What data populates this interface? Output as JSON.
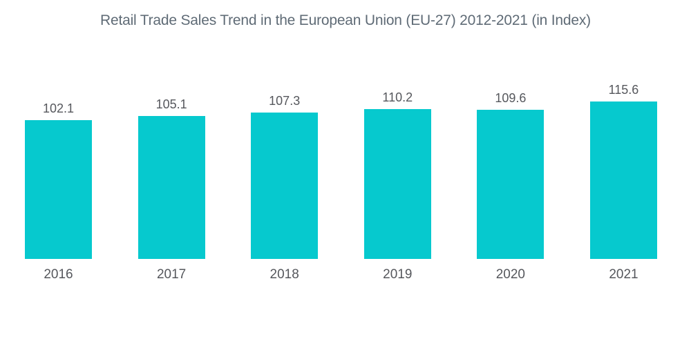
{
  "chart_data": {
    "type": "bar",
    "title": "Retail Trade Sales Trend in the European Union (EU-27) 2012-2021 (in Index)",
    "categories": [
      "2016",
      "2017",
      "2018",
      "2019",
      "2020",
      "2021"
    ],
    "values": [
      102.1,
      105.1,
      107.3,
      110.2,
      109.6,
      115.6
    ],
    "value_labels": [
      "102.1",
      "105.1",
      "107.3",
      "110.2",
      "109.6",
      "115.6"
    ],
    "xlabel": "",
    "ylabel": "",
    "ylim": [
      0,
      120
    ],
    "grid": false,
    "legend_position": "none",
    "bar_color": "#06c9ce",
    "title_color": "#5f6b76",
    "label_color": "#55575c",
    "background_color": "#ffffff"
  }
}
